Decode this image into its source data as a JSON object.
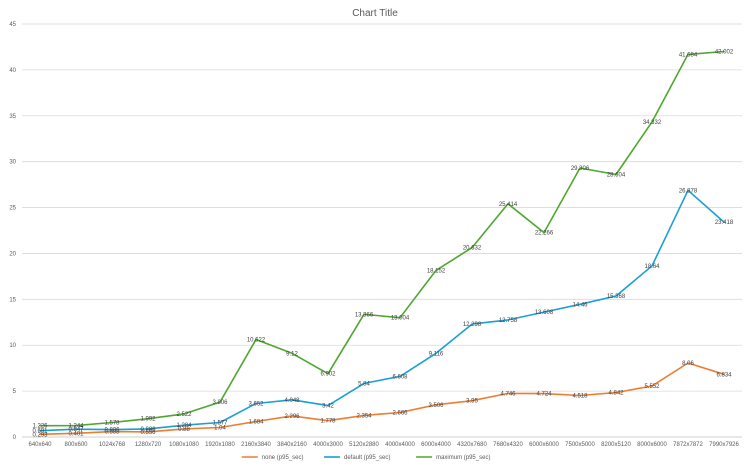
{
  "chart_data": {
    "type": "line",
    "title": "Chart Title",
    "xlabel": "",
    "ylabel": "",
    "ylim": [
      0,
      45
    ],
    "yticks": [
      "0",
      "5",
      "10",
      "15",
      "20",
      "25",
      "30",
      "35",
      "40",
      "45"
    ],
    "grid": true,
    "legend": "bottom",
    "categories": [
      "640x640",
      "800x600",
      "1024x768",
      "1280x720",
      "1080x1080",
      "1920x1080",
      "2160x3840",
      "3840x2160",
      "4000x3000",
      "5120x2880",
      "4000x4000",
      "6000x4000",
      "4320x7680",
      "7680x4320",
      "6000x6000",
      "7500x5000",
      "8200x5120",
      "8000x6000",
      "7872x7872",
      "7990x7926"
    ],
    "series": [
      {
        "name": "none (p95_sec)",
        "color": "#ED7D31",
        "values": [
          0.293,
          0.401,
          0.588,
          0.556,
          0.88,
          1.04,
          1.684,
          2.296,
          1.778,
          2.354,
          2.666,
          3.506,
          3.95,
          4.746,
          4.724,
          4.518,
          4.842,
          5.552,
          8.06,
          6.834
        ],
        "labels": [
          "0.293",
          "0.401",
          "0.588",
          "0.556",
          "0.88",
          "1.04",
          "1.684",
          "2.296",
          "1.778",
          "2.354",
          "2.666",
          "3.506",
          "3.95",
          "4.746",
          "4.724",
          "4.518",
          "4.842",
          "5.552",
          "8.06",
          "6.834"
        ]
      },
      {
        "name": "default (p95_sec)",
        "color": "#1A9FD6",
        "values": [
          0.691,
          0.847,
          0.806,
          0.886,
          1.284,
          1.577,
          3.652,
          4.048,
          3.42,
          5.84,
          6.608,
          9.116,
          12.298,
          12.758,
          13.608,
          14.46,
          15.368,
          18.64,
          26.878,
          23.418
        ],
        "labels": [
          "0.691",
          "0.847",
          "0.806",
          "0.886",
          "1.284",
          "1.577",
          "3.652",
          "4.048",
          "3.42",
          "5.84",
          "6.608",
          "9.116",
          "12.298",
          "12.758",
          "13.608",
          "14.46",
          "15.368",
          "18.64",
          "26.878",
          "23.418"
        ]
      },
      {
        "name": "maximum (p95_sec)",
        "color": "#4EA72E",
        "values": [
          1.226,
          1.244,
          1.578,
          1.992,
          2.522,
          3.806,
          10.622,
          9.12,
          6.902,
          13.366,
          13.004,
          18.152,
          20.632,
          25.414,
          22.266,
          29.306,
          28.604,
          34.332,
          41.684,
          42.002
        ],
        "labels": [
          "1.226",
          "1.244",
          "1.578",
          "1.992",
          "2.522",
          "3.806",
          "10.622",
          "9.12",
          "6.902",
          "13.366",
          "13.004",
          "18.152",
          "20.632",
          "25.414",
          "22.266",
          "29.306",
          "28.604",
          "34.332",
          "41.684",
          "42.002"
        ]
      }
    ]
  }
}
